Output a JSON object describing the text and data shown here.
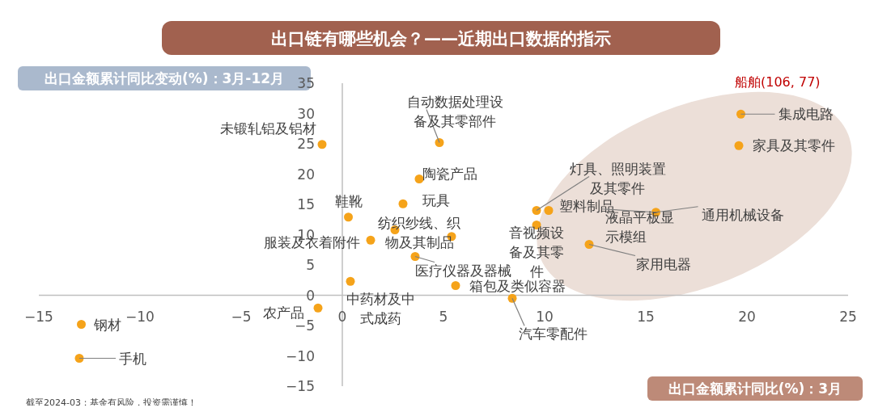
{
  "chart_data": {
    "type": "scatter",
    "title": "出口链有哪些机会？——近期出口数据的指示",
    "xlabel": "出口金额累计同比(%)：3月",
    "ylabel": "出口金额累计同比变动(%)：3月-12月",
    "x": [
      -12.9,
      -13.0,
      -1.2,
      0.4,
      -1.0,
      0.3,
      1.4,
      2.6,
      5.4,
      3.0,
      3.8,
      4.8,
      3.6,
      5.6,
      8.4,
      9.6,
      9.6,
      10.2,
      12.2,
      15.5,
      19.7,
      19.6
    ],
    "series": [
      {
        "color": "#f5a31a",
        "values": [
          -4.8,
          -10.4,
          -2.1,
          2.3,
          24.9,
          12.9,
          9.1,
          10.8,
          9.7,
          15.1,
          19.2,
          25.2,
          6.4,
          1.6,
          -0.5,
          11.6,
          14.0,
          14.0,
          8.4,
          13.7,
          29.9,
          24.7
        ]
      }
    ],
    "xlim": [
      -15,
      25
    ],
    "xticks": [
      -15,
      -10,
      -5,
      0,
      5,
      10,
      15,
      20,
      25
    ],
    "ylim": [
      -15,
      35
    ],
    "yticks": [
      -15,
      -10,
      -5,
      0,
      5,
      10,
      15,
      20,
      25,
      30,
      35
    ],
    "marker": "circle",
    "annotations": [
      {
        "text": "钢材",
        "x": -12.9,
        "y": -4.8
      },
      {
        "text": "手机",
        "x": -13.0,
        "y": -10.4
      },
      {
        "text": "农产品",
        "x": -1.2,
        "y": -2.1
      },
      {
        "text": "中药材及中式成药",
        "x": 0.4,
        "y": 2.3
      },
      {
        "text": "未锻轧铝及铝材",
        "x": -1.0,
        "y": 24.9
      },
      {
        "text": "鞋靴",
        "x": 0.3,
        "y": 12.9
      },
      {
        "text": "服装及衣着附件",
        "x": 1.4,
        "y": 9.1
      },
      {
        "text": "纺织纱线、织物及其制品",
        "x": 5.4,
        "y": 9.7
      },
      {
        "text": "玩具",
        "x": 3.0,
        "y": 15.1
      },
      {
        "text": "陶瓷产品",
        "x": 3.8,
        "y": 19.2
      },
      {
        "text": "自动数据处理设备及其零部件",
        "x": 4.8,
        "y": 25.2
      },
      {
        "text": "医疗仪器及器械",
        "x": 3.6,
        "y": 6.4
      },
      {
        "text": "箱包及类似容器",
        "x": 5.6,
        "y": 1.6
      },
      {
        "text": "汽车零配件",
        "x": 8.4,
        "y": -0.5
      },
      {
        "text": "音视频设备及其零件",
        "x": 9.6,
        "y": 11.6
      },
      {
        "text": "灯具、照明装置及其零件",
        "x": 9.6,
        "y": 14.0
      },
      {
        "text": "塑料制品",
        "x": 10.2,
        "y": 14.0
      },
      {
        "text": "家用电器",
        "x": 12.2,
        "y": 8.4
      },
      {
        "text": "液晶平板显示模组",
        "x": 15.5,
        "y": 13.7
      },
      {
        "text": "通用机械设备",
        "x": 15.5,
        "y": 13.7
      },
      {
        "text": "集成电路",
        "x": 19.7,
        "y": 29.9
      },
      {
        "text": "家具及其零件",
        "x": 19.6,
        "y": 24.7
      },
      "船舶(106, 77)",
      "截至2024-03；基金有风险，投资需谨慎！"
    ]
  }
}
